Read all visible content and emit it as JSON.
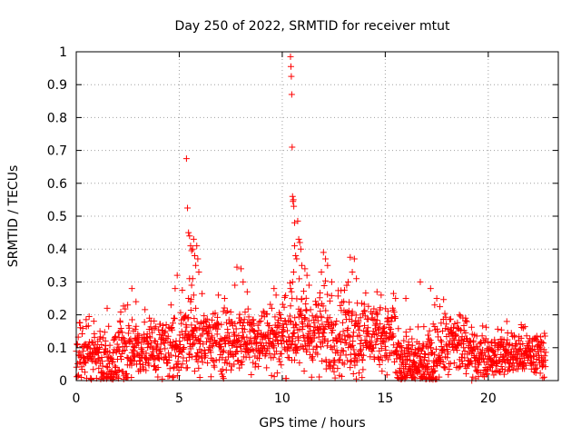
{
  "chart_data": {
    "type": "scatter",
    "title": "Day 250 of 2022, SRMTID for receiver mtut",
    "xlabel": "GPS time / hours",
    "ylabel": "SRMTID / TECUs",
    "xlim": [
      0,
      23.4
    ],
    "ylim": [
      0,
      1
    ],
    "x_ticks": [
      0,
      5,
      10,
      15,
      20
    ],
    "y_ticks": [
      0,
      0.1,
      0.2,
      0.3,
      0.4,
      0.5,
      0.6,
      0.7,
      0.8,
      0.9,
      1
    ],
    "x_tick_labels": [
      "0",
      "5",
      "10",
      "15",
      "20"
    ],
    "y_tick_labels": [
      "0",
      "0.1",
      "0.2",
      "0.3",
      "0.4",
      "0.5",
      "0.6",
      "0.7",
      "0.8",
      "0.9",
      "1"
    ],
    "grid": true,
    "marker": "+",
    "color": "#ff0000",
    "series": [
      {
        "name": "SRMTID",
        "points": [
          [
            5.35,
            0.675
          ],
          [
            5.4,
            0.525
          ],
          [
            5.45,
            0.45
          ],
          [
            5.5,
            0.44
          ],
          [
            5.55,
            0.41
          ],
          [
            5.6,
            0.395
          ],
          [
            5.65,
            0.4
          ],
          [
            5.7,
            0.43
          ],
          [
            5.75,
            0.38
          ],
          [
            5.8,
            0.35
          ],
          [
            5.85,
            0.41
          ],
          [
            5.9,
            0.37
          ],
          [
            5.95,
            0.33
          ],
          [
            5.5,
            0.31
          ],
          [
            5.6,
            0.29
          ],
          [
            5.45,
            0.25
          ],
          [
            5.55,
            0.24
          ],
          [
            5.7,
            0.26
          ],
          [
            5.8,
            0.22
          ],
          [
            5.65,
            0.31
          ],
          [
            10.4,
            0.985
          ],
          [
            10.42,
            0.955
          ],
          [
            10.44,
            0.925
          ],
          [
            10.46,
            0.87
          ],
          [
            10.48,
            0.71
          ],
          [
            10.5,
            0.56
          ],
          [
            10.52,
            0.545
          ],
          [
            10.54,
            0.55
          ],
          [
            10.56,
            0.53
          ],
          [
            10.6,
            0.48
          ],
          [
            10.75,
            0.485
          ],
          [
            10.8,
            0.43
          ],
          [
            10.85,
            0.42
          ],
          [
            10.9,
            0.4
          ],
          [
            10.6,
            0.41
          ],
          [
            10.65,
            0.38
          ],
          [
            10.7,
            0.37
          ],
          [
            10.55,
            0.33
          ],
          [
            10.5,
            0.3
          ],
          [
            10.95,
            0.35
          ],
          [
            11.1,
            0.34
          ],
          [
            11.2,
            0.32
          ],
          [
            10.4,
            0.28
          ],
          [
            10.45,
            0.27
          ],
          [
            11.3,
            0.29
          ],
          [
            12.0,
            0.39
          ],
          [
            12.1,
            0.37
          ],
          [
            12.2,
            0.35
          ],
          [
            11.9,
            0.33
          ],
          [
            12.4,
            0.3
          ],
          [
            13.3,
            0.375
          ],
          [
            13.5,
            0.37
          ],
          [
            13.4,
            0.33
          ],
          [
            13.2,
            0.3
          ],
          [
            13.6,
            0.31
          ],
          [
            2.7,
            0.28
          ],
          [
            2.9,
            0.24
          ],
          [
            1.5,
            0.22
          ],
          [
            7.8,
            0.345
          ],
          [
            8.0,
            0.34
          ],
          [
            8.1,
            0.3
          ],
          [
            7.7,
            0.29
          ],
          [
            8.3,
            0.27
          ],
          [
            9.7,
            0.26
          ],
          [
            9.6,
            0.28
          ],
          [
            6.9,
            0.26
          ],
          [
            7.2,
            0.25
          ],
          [
            4.9,
            0.32
          ],
          [
            4.8,
            0.28
          ],
          [
            4.6,
            0.23
          ],
          [
            14.6,
            0.27
          ],
          [
            14.8,
            0.26
          ],
          [
            15.4,
            0.265
          ],
          [
            15.5,
            0.25
          ],
          [
            16.0,
            0.25
          ],
          [
            16.7,
            0.3
          ],
          [
            17.2,
            0.28
          ],
          [
            17.5,
            0.25
          ],
          [
            17.4,
            0.23
          ],
          [
            18.6,
            0.2
          ],
          [
            18.9,
            0.19
          ],
          [
            20.9,
            0.18
          ],
          [
            21.6,
            0.17
          ],
          [
            21.7,
            0.16
          ]
        ]
      }
    ]
  }
}
